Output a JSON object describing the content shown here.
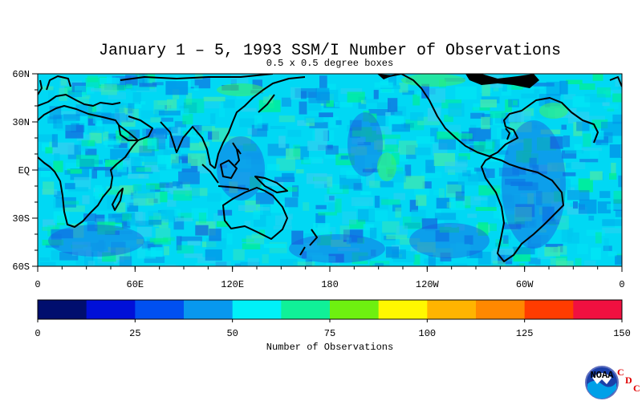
{
  "title": "January 1 – 5, 1993 SSM/I Number of Observations",
  "subtitle": "0.5 x 0.5 degree boxes",
  "map": {
    "lat_labels": [
      "60N",
      "30N",
      "EQ",
      "30S",
      "60S"
    ],
    "lon_labels": [
      "0",
      "60E",
      "120E",
      "180",
      "120W",
      "60W",
      "0"
    ],
    "lat_range": [
      -60,
      60
    ],
    "lon_range": [
      0,
      360
    ],
    "background_colors": [
      "#00e6f5",
      "#00c8f0",
      "#30d0f0",
      "#0090e8",
      "#1070e0",
      "#00f090",
      "#40e8b0"
    ]
  },
  "colorbar": {
    "label": "Number of Observations",
    "tick_labels": [
      "0",
      "25",
      "50",
      "75",
      "100",
      "125",
      "150"
    ],
    "range": [
      0,
      150
    ],
    "colors": [
      "#000e6e",
      "#0010d8",
      "#0050f0",
      "#0898ee",
      "#00f0f8",
      "#10f098",
      "#6ef010",
      "#fff800",
      "#ffb400",
      "#ff8800",
      "#ff3c00",
      "#f01040"
    ]
  },
  "logo": {
    "icon": "noaa-logo-icon",
    "logo_text": "NOAA",
    "letters": [
      "C",
      "D",
      "C"
    ]
  }
}
